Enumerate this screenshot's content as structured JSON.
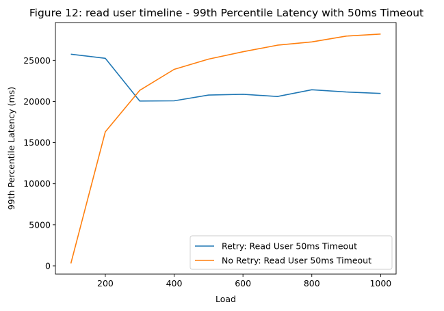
{
  "chart_data": {
    "type": "line",
    "title": "Figure 12: read user timeline - 99th Percentile Latency with 50ms Timeout",
    "xlabel": "Load",
    "ylabel": "99th Percentile Latency (ms)",
    "x": [
      100,
      200,
      300,
      400,
      500,
      600,
      700,
      800,
      900,
      1000
    ],
    "xlim": [
      55,
      1045
    ],
    "ylim": [
      -1000,
      29600
    ],
    "xticks": [
      200,
      400,
      600,
      800,
      1000
    ],
    "yticks": [
      0,
      5000,
      10000,
      15000,
      20000,
      25000
    ],
    "grid": false,
    "legend_position": "lower-right",
    "series": [
      {
        "name": "Retry: Read User 50ms Timeout",
        "color": "#1f77b4",
        "values": [
          25750,
          25250,
          20050,
          20080,
          20780,
          20880,
          20600,
          21430,
          21150,
          20980
        ]
      },
      {
        "name": "No Retry: Read User 50ms Timeout",
        "color": "#ff7f0e",
        "values": [
          300,
          16300,
          21350,
          23900,
          25150,
          26050,
          26850,
          27250,
          27950,
          28200
        ]
      }
    ]
  }
}
